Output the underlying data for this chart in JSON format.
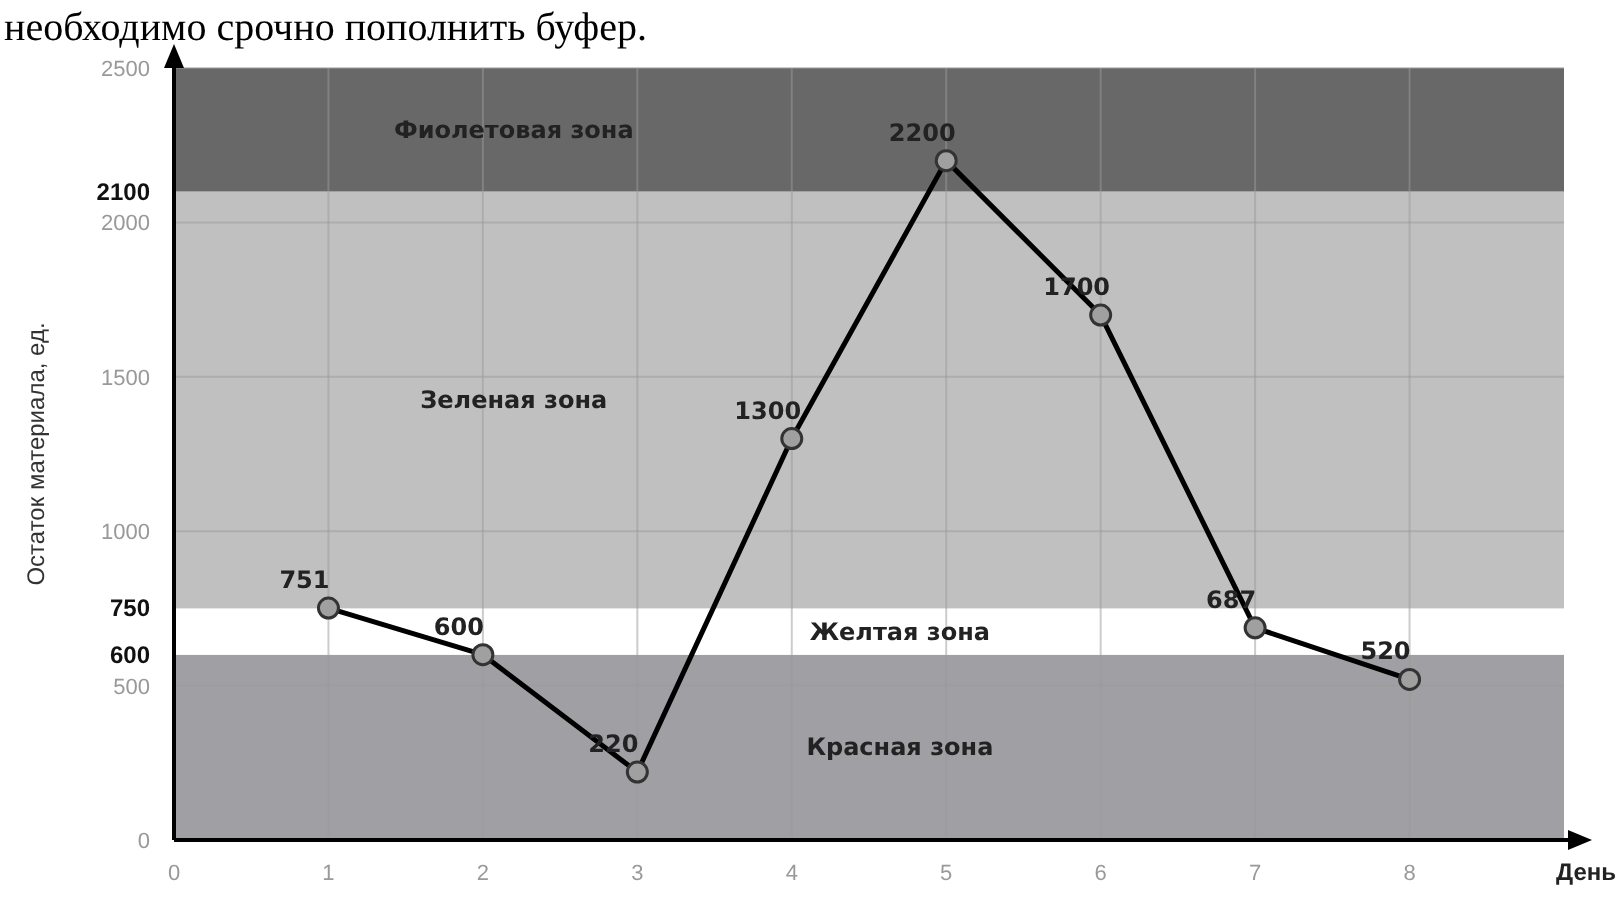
{
  "chart_data": {
    "type": "line",
    "annotations": [
      "необходимо срочно пополнить буфер."
    ],
    "xlabel": "День",
    "ylabel": "Остаток материала, ед.",
    "x": [
      1,
      2,
      3,
      4,
      5,
      6,
      7,
      8
    ],
    "series": [
      {
        "color": "#000000",
        "values": [
          751,
          600,
          220,
          1300,
          2200,
          1700,
          687,
          520
        ]
      }
    ],
    "data_labels": true,
    "marker": "circle",
    "line_style": "solid",
    "grid": true,
    "xlim": [
      0,
      9
    ],
    "xticks": [
      0,
      1,
      2,
      3,
      4,
      5,
      6,
      7,
      8
    ],
    "ylim": [
      0,
      2500
    ],
    "yticks": [
      0,
      500,
      {
        "value": 600,
        "label": "600"
      },
      {
        "value": 750,
        "label": "750"
      },
      1000,
      1500,
      2000,
      {
        "value": 2100,
        "label": "2100"
      },
      2500
    ],
    "bands": [
      {
        "axis": "y",
        "from": 0,
        "to": 600,
        "label": "Красная зона",
        "color": "#a0a0a4"
      },
      {
        "axis": "y",
        "from": 600,
        "to": 750,
        "label": "Желтая зона",
        "color": "#ffffff"
      },
      {
        "axis": "y",
        "from": 750,
        "to": 2100,
        "label": "Зеленая зона",
        "color": "#c0c0c0"
      },
      {
        "axis": "y",
        "from": 2100,
        "to": 2500,
        "label": "Фиолетовая зона",
        "color": "#686868"
      }
    ]
  }
}
